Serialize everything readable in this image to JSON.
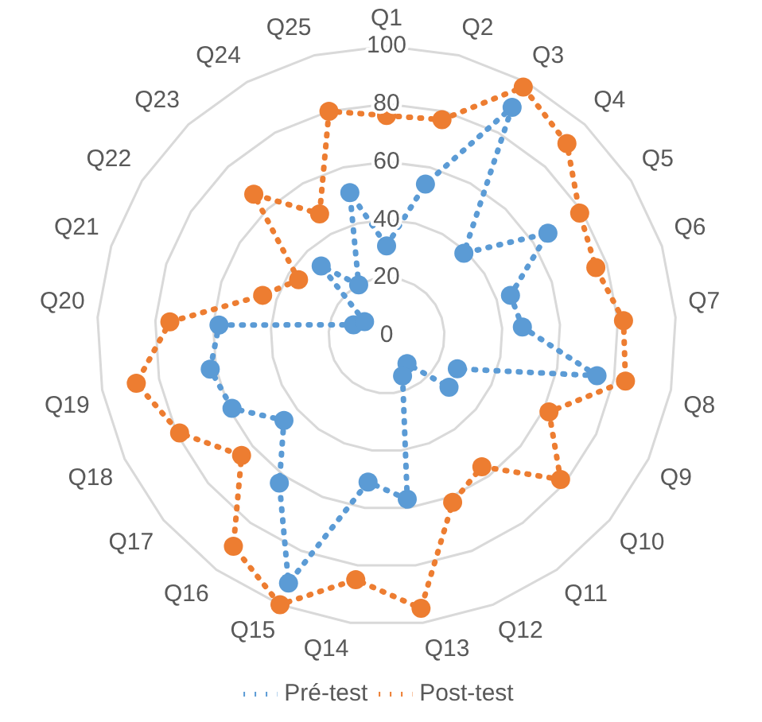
{
  "chart_data": {
    "type": "radar",
    "categories": [
      "Q1",
      "Q2",
      "Q3",
      "Q4",
      "Q5",
      "Q6",
      "Q7",
      "Q8",
      "Q9",
      "Q10",
      "Q11",
      "Q12",
      "Q13",
      "Q14",
      "Q15",
      "Q16",
      "Q17",
      "Q18",
      "Q19",
      "Q20",
      "Q21",
      "Q22",
      "Q23",
      "Q24",
      "Q25"
    ],
    "series": [
      {
        "name": "Pré-test",
        "color": "#5b9bd5",
        "values": [
          31,
          54,
          90,
          39,
          66,
          45,
          47,
          74,
          27,
          28,
          12,
          15,
          57,
          51,
          92,
          63,
          46,
          59,
          62,
          58,
          12,
          9,
          33,
          20,
          51
        ]
      },
      {
        "name": "Post-test",
        "color": "#ed7d31",
        "values": [
          76,
          77,
          98,
          91,
          79,
          76,
          82,
          84,
          62,
          78,
          56,
          62,
          95,
          85,
          100,
          90,
          65,
          79,
          88,
          75,
          45,
          36,
          67,
          48,
          80
        ]
      }
    ],
    "ylim": [
      0,
      100
    ],
    "yticks": [
      0,
      20,
      40,
      60,
      80,
      100
    ],
    "grid": true,
    "legend": "bottom",
    "marker": "circle",
    "line_style": "dotted"
  }
}
